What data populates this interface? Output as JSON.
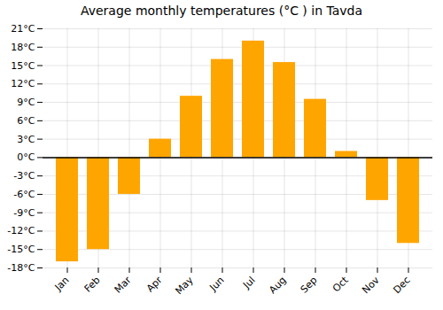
{
  "chart_data": {
    "type": "bar",
    "title": "Average monthly temperatures (°C ) in Tavda",
    "categories": [
      "Jan",
      "Feb",
      "Mar",
      "Apr",
      "May",
      "Jun",
      "Jul",
      "Aug",
      "Sep",
      "Oct",
      "Nov",
      "Dec"
    ],
    "values": [
      -17,
      -15,
      -6,
      3,
      10,
      16,
      19,
      15.5,
      9.5,
      1,
      -7,
      -14
    ],
    "color": "#FFA500",
    "ylim": [
      -18,
      21
    ],
    "yticks": [
      {
        "value": -18,
        "label": "-18°C"
      },
      {
        "value": -15,
        "label": "-15°C"
      },
      {
        "value": -12,
        "label": "-12°C"
      },
      {
        "value": -9,
        "label": "-9°C"
      },
      {
        "value": -6,
        "label": "-6°C"
      },
      {
        "value": -3,
        "label": "-3°C"
      },
      {
        "value": 0,
        "label": "0°C"
      },
      {
        "value": 3,
        "label": "3°C"
      },
      {
        "value": 6,
        "label": "6°C"
      },
      {
        "value": 9,
        "label": "9°C"
      },
      {
        "value": 12,
        "label": "12°C"
      },
      {
        "value": 15,
        "label": "15°C"
      },
      {
        "value": 18,
        "label": "18°C"
      },
      {
        "value": 21,
        "label": "21°C"
      }
    ],
    "grid": true
  }
}
